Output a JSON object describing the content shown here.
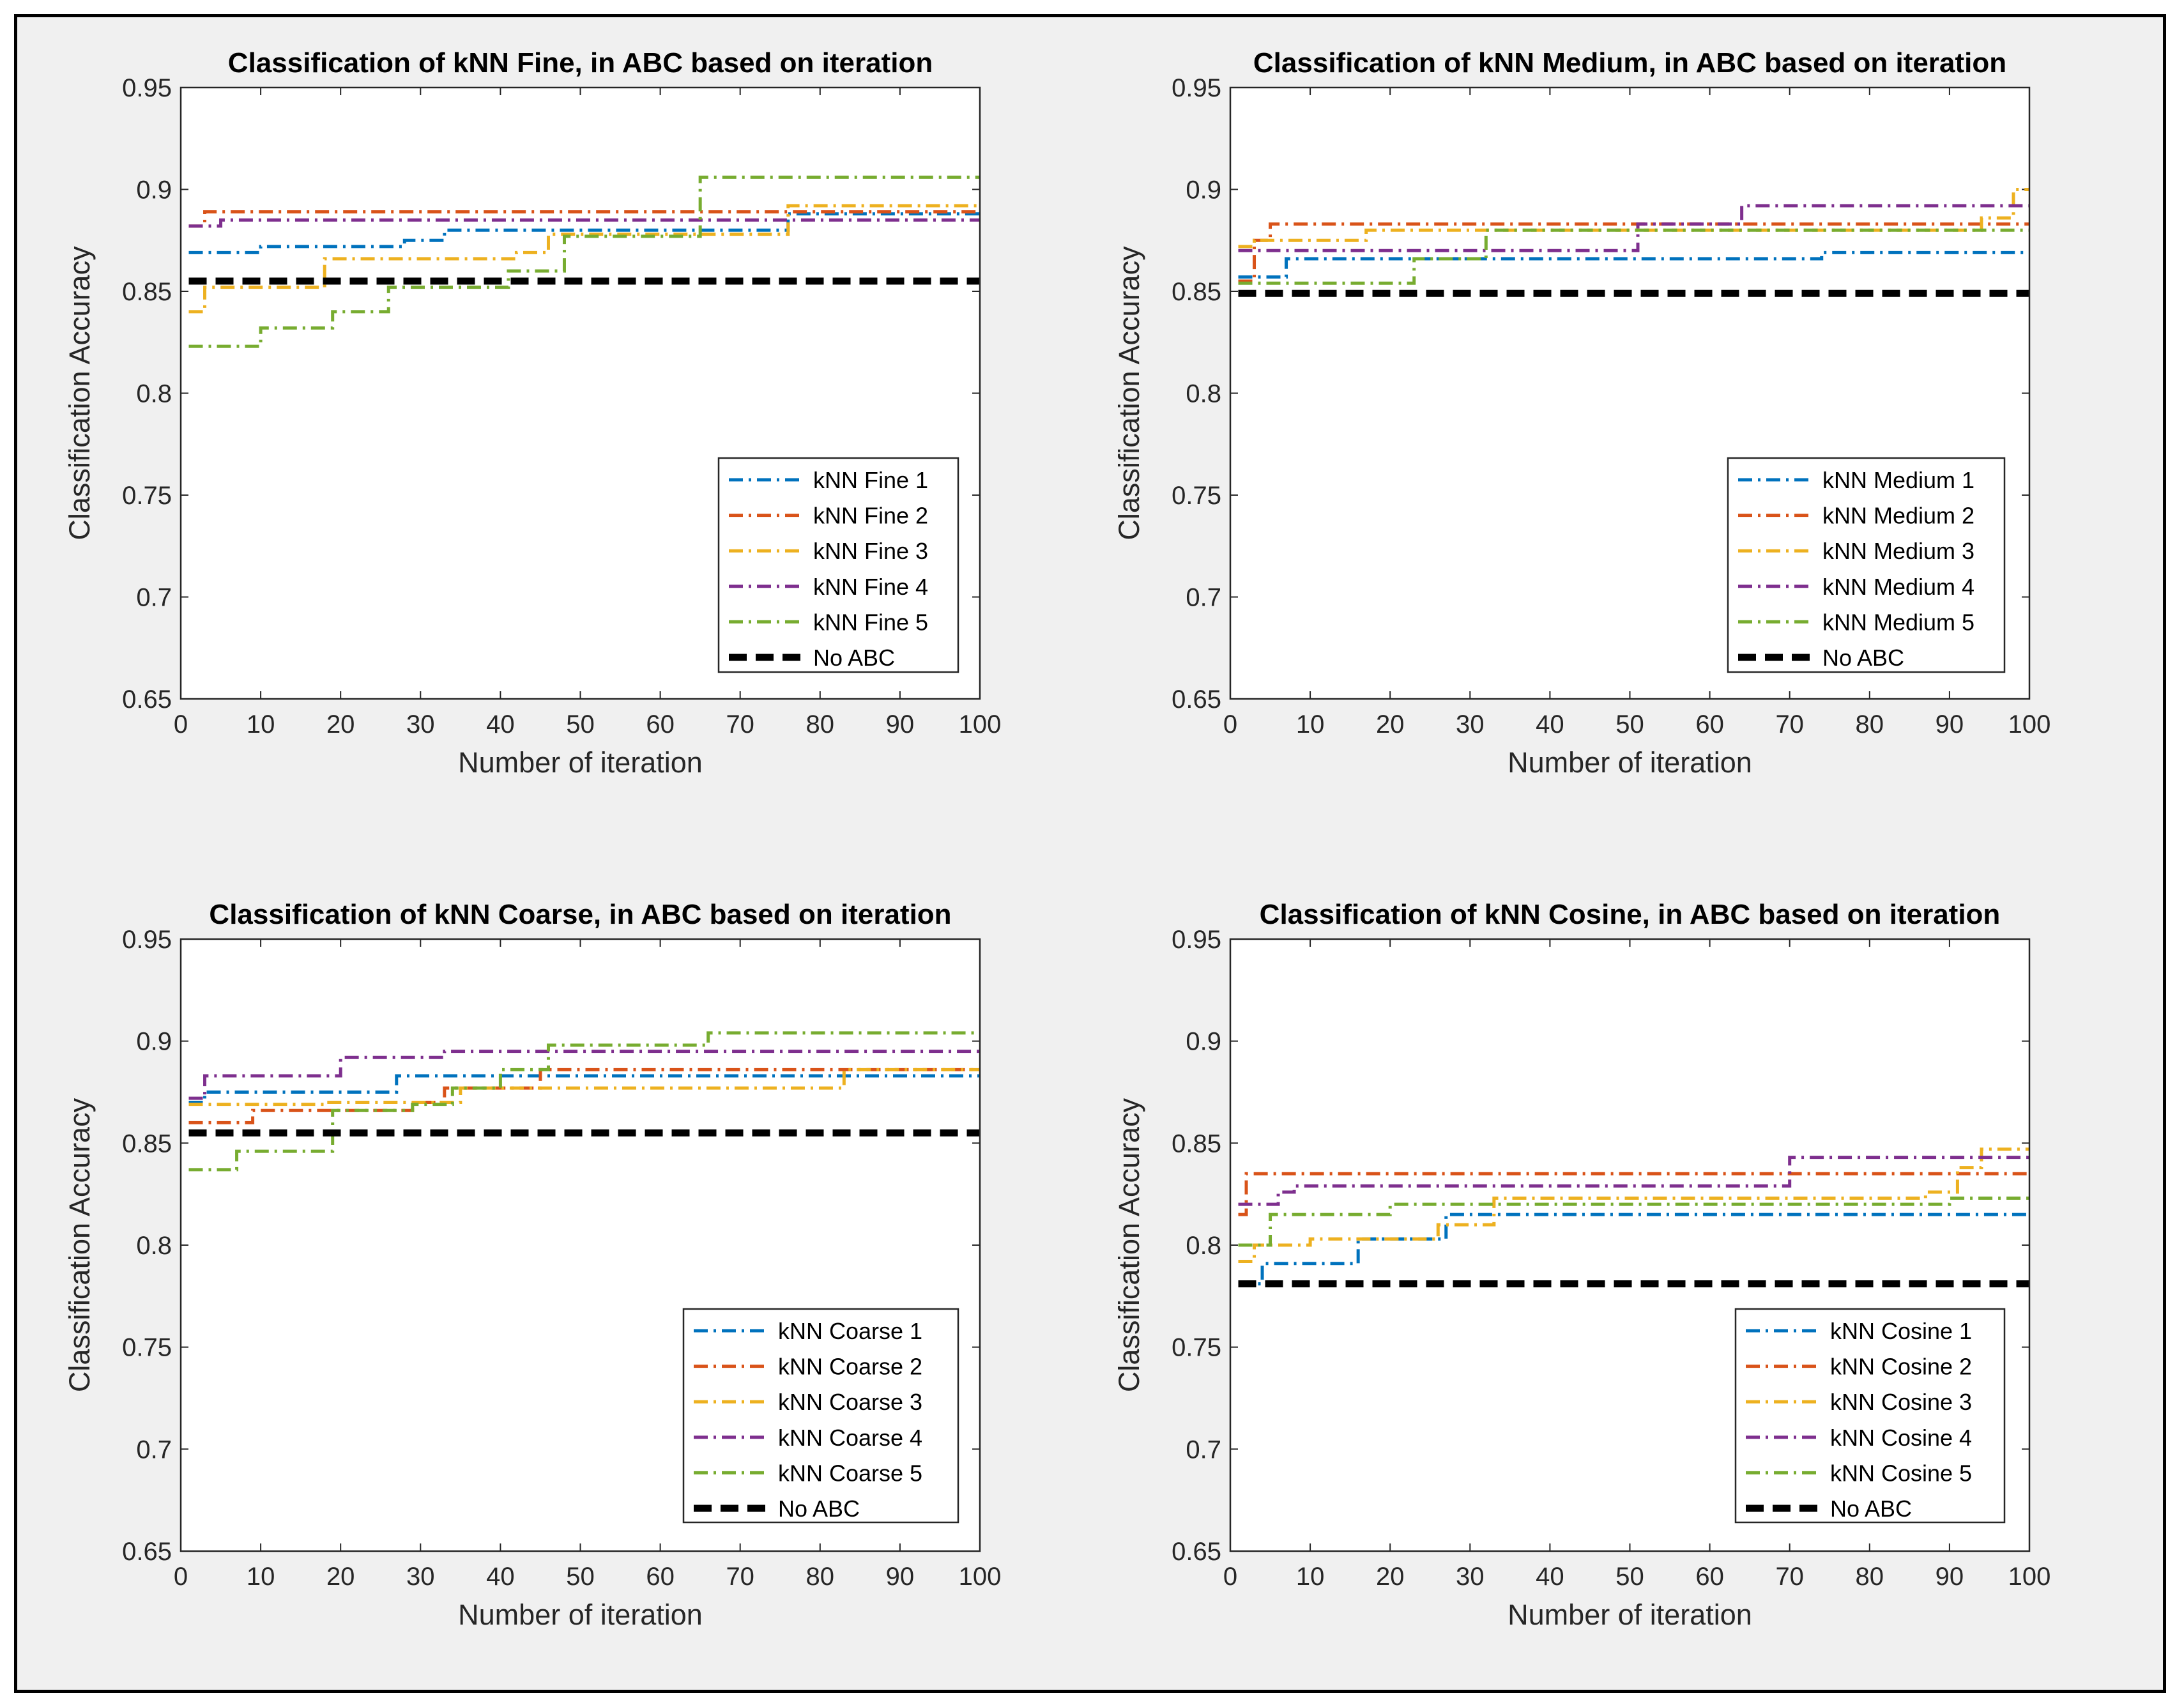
{
  "chart_data": [
    {
      "type": "line",
      "title": "Classification of kNN Fine, in ABC based on iteration",
      "xlabel": "Number of iteration",
      "ylabel": "Classification Accuracy",
      "xlim": [
        0,
        100
      ],
      "ylim": [
        0.65,
        0.95
      ],
      "xticks": [
        0,
        10,
        20,
        30,
        40,
        50,
        60,
        70,
        80,
        90,
        100
      ],
      "yticks": [
        0.65,
        0.7,
        0.75,
        0.8,
        0.85,
        0.9,
        0.95
      ],
      "ytick_labels": [
        "0.65",
        "0.7",
        "0.75",
        "0.8",
        "0.85",
        "0.9",
        "0.95"
      ],
      "legend_position": "bottom-right",
      "series": [
        {
          "name": "kNN Fine 1",
          "color": "#0072BD",
          "style": "dashdot",
          "steps": [
            [
              1,
              0.869
            ],
            [
              10,
              0.872
            ],
            [
              28,
              0.875
            ],
            [
              33,
              0.88
            ],
            [
              62,
              0.88
            ],
            [
              76,
              0.888
            ],
            [
              100,
              0.888
            ]
          ]
        },
        {
          "name": "kNN Fine 2",
          "color": "#D95319",
          "style": "dashdot",
          "steps": [
            [
              1,
              0.882
            ],
            [
              3,
              0.889
            ],
            [
              100,
              0.889
            ]
          ]
        },
        {
          "name": "kNN Fine 3",
          "color": "#EDB120",
          "style": "dashdot",
          "steps": [
            [
              1,
              0.84
            ],
            [
              3,
              0.852
            ],
            [
              18,
              0.866
            ],
            [
              42,
              0.869
            ],
            [
              46,
              0.878
            ],
            [
              76,
              0.892
            ],
            [
              100,
              0.892
            ]
          ]
        },
        {
          "name": "kNN Fine 4",
          "color": "#7E2F8E",
          "style": "dashdot",
          "steps": [
            [
              1,
              0.882
            ],
            [
              5,
              0.885
            ],
            [
              100,
              0.885
            ]
          ]
        },
        {
          "name": "kNN Fine 5",
          "color": "#77AC30",
          "style": "dashdot",
          "steps": [
            [
              1,
              0.823
            ],
            [
              10,
              0.832
            ],
            [
              19,
              0.84
            ],
            [
              26,
              0.852
            ],
            [
              41,
              0.86
            ],
            [
              48,
              0.877
            ],
            [
              65,
              0.906
            ],
            [
              100,
              0.906
            ]
          ]
        },
        {
          "name": "No ABC",
          "color": "#000000",
          "style": "dashed",
          "steps": [
            [
              1,
              0.855
            ],
            [
              100,
              0.855
            ]
          ]
        }
      ]
    },
    {
      "type": "line",
      "title": "Classification of kNN Medium, in ABC based on iteration",
      "xlabel": "Number of iteration",
      "ylabel": "Classification Accuracy",
      "xlim": [
        0,
        100
      ],
      "ylim": [
        0.65,
        0.95
      ],
      "xticks": [
        0,
        10,
        20,
        30,
        40,
        50,
        60,
        70,
        80,
        90,
        100
      ],
      "yticks": [
        0.65,
        0.7,
        0.75,
        0.8,
        0.85,
        0.9,
        0.95
      ],
      "ytick_labels": [
        "0.65",
        "0.7",
        "0.75",
        "0.8",
        "0.85",
        "0.9",
        "0.95"
      ],
      "legend_position": "bottom-right",
      "series": [
        {
          "name": "kNN Medium 1",
          "color": "#0072BD",
          "style": "dashdot",
          "steps": [
            [
              1,
              0.857
            ],
            [
              7,
              0.866
            ],
            [
              74,
              0.869
            ],
            [
              100,
              0.869
            ]
          ]
        },
        {
          "name": "kNN Medium 2",
          "color": "#D95319",
          "style": "dashdot",
          "steps": [
            [
              1,
              0.855
            ],
            [
              3,
              0.875
            ],
            [
              5,
              0.883
            ],
            [
              100,
              0.883
            ]
          ]
        },
        {
          "name": "kNN Medium 3",
          "color": "#EDB120",
          "style": "dashdot",
          "steps": [
            [
              1,
              0.872
            ],
            [
              3,
              0.875
            ],
            [
              17,
              0.88
            ],
            [
              94,
              0.886
            ],
            [
              98,
              0.9
            ],
            [
              100,
              0.9
            ]
          ]
        },
        {
          "name": "kNN Medium 4",
          "color": "#7E2F8E",
          "style": "dashdot",
          "steps": [
            [
              1,
              0.87
            ],
            [
              51,
              0.883
            ],
            [
              64,
              0.892
            ],
            [
              100,
              0.892
            ]
          ]
        },
        {
          "name": "kNN Medium 5",
          "color": "#77AC30",
          "style": "dashdot",
          "steps": [
            [
              1,
              0.854
            ],
            [
              23,
              0.866
            ],
            [
              32,
              0.88
            ],
            [
              100,
              0.88
            ]
          ]
        },
        {
          "name": "No ABC",
          "color": "#000000",
          "style": "dashed",
          "steps": [
            [
              1,
              0.849
            ],
            [
              100,
              0.849
            ]
          ]
        }
      ]
    },
    {
      "type": "line",
      "title": "Classification of kNN Coarse, in ABC based on iteration",
      "xlabel": "Number of iteration",
      "ylabel": "Classification Accuracy",
      "xlim": [
        0,
        100
      ],
      "ylim": [
        0.65,
        0.95
      ],
      "xticks": [
        0,
        10,
        20,
        30,
        40,
        50,
        60,
        70,
        80,
        90,
        100
      ],
      "yticks": [
        0.65,
        0.7,
        0.75,
        0.8,
        0.85,
        0.9,
        0.95
      ],
      "ytick_labels": [
        "0.65",
        "0.7",
        "0.75",
        "0.8",
        "0.85",
        "0.9",
        "0.95"
      ],
      "legend_position": "bottom-right",
      "series": [
        {
          "name": "kNN Coarse 1",
          "color": "#0072BD",
          "style": "dashdot",
          "steps": [
            [
              1,
              0.87
            ],
            [
              3,
              0.875
            ],
            [
              27,
              0.883
            ],
            [
              100,
              0.883
            ]
          ]
        },
        {
          "name": "kNN Coarse 2",
          "color": "#D95319",
          "style": "dashdot",
          "steps": [
            [
              1,
              0.86
            ],
            [
              9,
              0.866
            ],
            [
              29,
              0.87
            ],
            [
              33,
              0.877
            ],
            [
              45,
              0.886
            ],
            [
              100,
              0.886
            ]
          ]
        },
        {
          "name": "kNN Coarse 3",
          "color": "#EDB120",
          "style": "dashdot",
          "steps": [
            [
              1,
              0.869
            ],
            [
              18,
              0.87
            ],
            [
              35,
              0.877
            ],
            [
              83,
              0.886
            ],
            [
              100,
              0.886
            ]
          ]
        },
        {
          "name": "kNN Coarse 4",
          "color": "#7E2F8E",
          "style": "dashdot",
          "steps": [
            [
              1,
              0.872
            ],
            [
              3,
              0.883
            ],
            [
              20,
              0.892
            ],
            [
              33,
              0.895
            ],
            [
              100,
              0.895
            ]
          ]
        },
        {
          "name": "kNN Coarse 5",
          "color": "#77AC30",
          "style": "dashdot",
          "steps": [
            [
              1,
              0.837
            ],
            [
              7,
              0.846
            ],
            [
              19,
              0.866
            ],
            [
              29,
              0.869
            ],
            [
              34,
              0.877
            ],
            [
              40,
              0.886
            ],
            [
              46,
              0.898
            ],
            [
              66,
              0.904
            ],
            [
              100,
              0.904
            ]
          ]
        },
        {
          "name": "No ABC",
          "color": "#000000",
          "style": "dashed",
          "steps": [
            [
              1,
              0.855
            ],
            [
              100,
              0.855
            ]
          ]
        }
      ]
    },
    {
      "type": "line",
      "title": "Classification of kNN Cosine, in ABC based on iteration",
      "xlabel": "Number of iteration",
      "ylabel": "Classification Accuracy",
      "xlim": [
        0,
        100
      ],
      "ylim": [
        0.65,
        0.95
      ],
      "xticks": [
        0,
        10,
        20,
        30,
        40,
        50,
        60,
        70,
        80,
        90,
        100
      ],
      "yticks": [
        0.65,
        0.7,
        0.75,
        0.8,
        0.85,
        0.9,
        0.95
      ],
      "ytick_labels": [
        "0.65",
        "0.7",
        "0.75",
        "0.8",
        "0.85",
        "0.9",
        "0.95"
      ],
      "legend_position": "bottom-right",
      "series": [
        {
          "name": "kNN Cosine 1",
          "color": "#0072BD",
          "style": "dashdot",
          "steps": [
            [
              1,
              0.781
            ],
            [
              4,
              0.791
            ],
            [
              16,
              0.803
            ],
            [
              27,
              0.815
            ],
            [
              100,
              0.815
            ]
          ]
        },
        {
          "name": "kNN Cosine 2",
          "color": "#D95319",
          "style": "dashdot",
          "steps": [
            [
              1,
              0.815
            ],
            [
              2,
              0.835
            ],
            [
              100,
              0.835
            ]
          ]
        },
        {
          "name": "kNN Cosine 3",
          "color": "#EDB120",
          "style": "dashdot",
          "steps": [
            [
              1,
              0.792
            ],
            [
              3,
              0.8
            ],
            [
              10,
              0.803
            ],
            [
              26,
              0.81
            ],
            [
              33,
              0.823
            ],
            [
              87,
              0.826
            ],
            [
              91,
              0.838
            ],
            [
              94,
              0.847
            ],
            [
              100,
              0.847
            ]
          ]
        },
        {
          "name": "kNN Cosine 4",
          "color": "#7E2F8E",
          "style": "dashdot",
          "steps": [
            [
              1,
              0.82
            ],
            [
              6,
              0.826
            ],
            [
              8,
              0.829
            ],
            [
              70,
              0.843
            ],
            [
              100,
              0.843
            ]
          ]
        },
        {
          "name": "kNN Cosine 5",
          "color": "#77AC30",
          "style": "dashdot",
          "steps": [
            [
              1,
              0.8
            ],
            [
              5,
              0.815
            ],
            [
              20,
              0.82
            ],
            [
              90,
              0.823
            ],
            [
              100,
              0.823
            ]
          ]
        },
        {
          "name": "No ABC",
          "color": "#000000",
          "style": "dashed",
          "steps": [
            [
              1,
              0.781
            ],
            [
              100,
              0.781
            ]
          ]
        }
      ]
    }
  ]
}
